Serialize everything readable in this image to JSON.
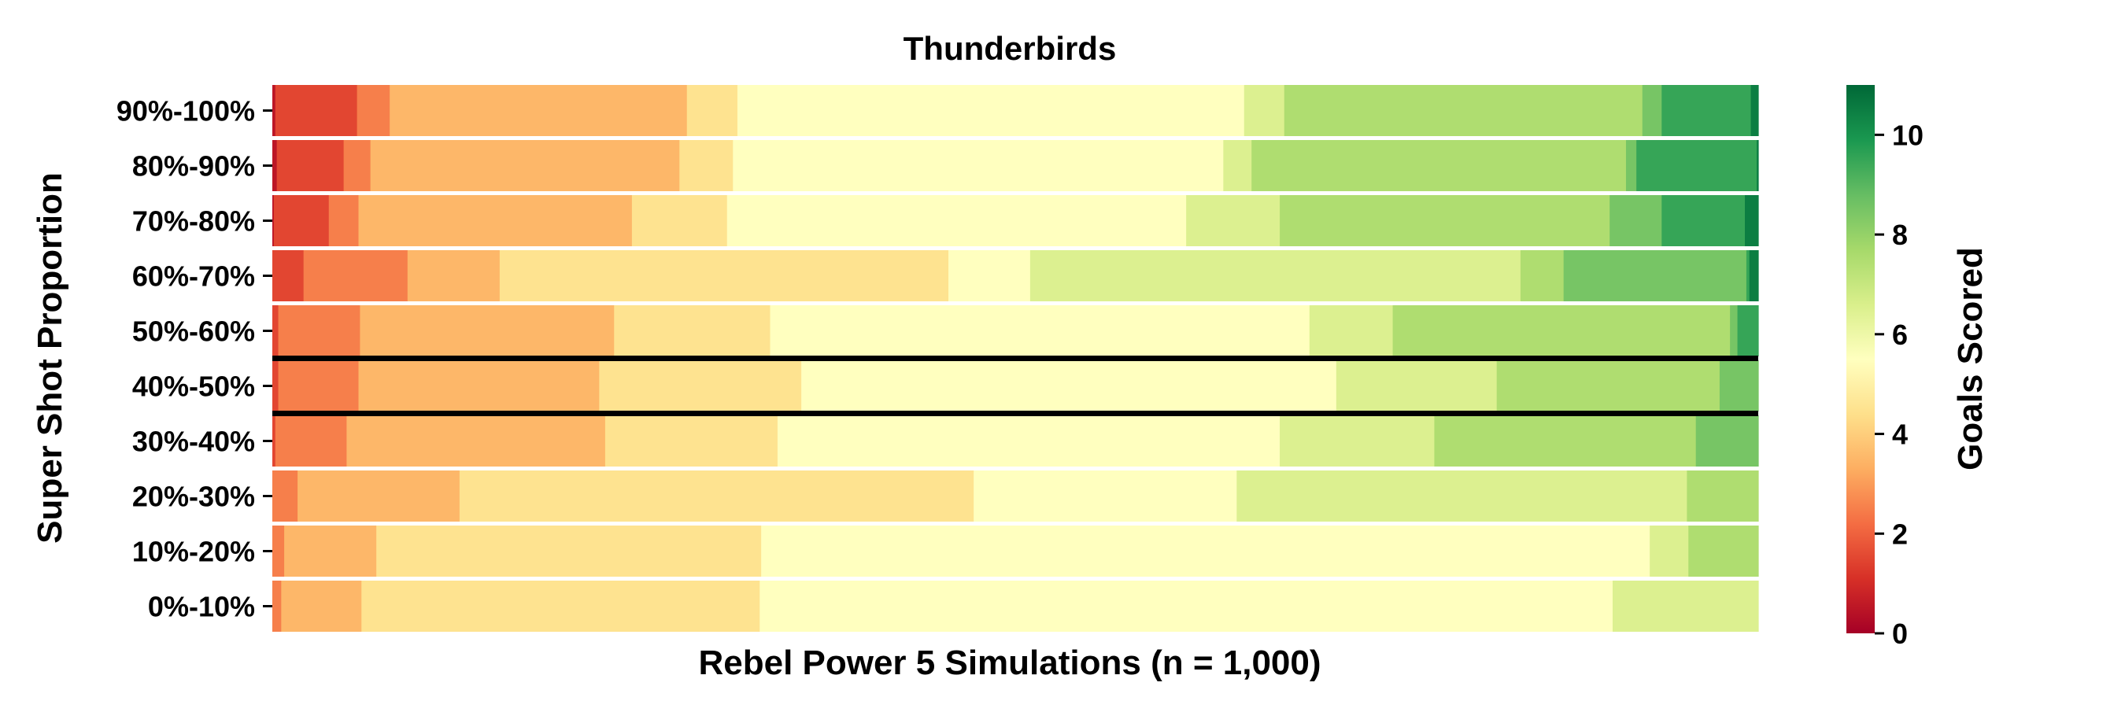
{
  "chart_data": {
    "type": "heatmap",
    "title": "Thunderbirds",
    "xlabel": "Rebel Power 5 Simulations (n = 1,000)",
    "ylabel": "Super Shot Proportion",
    "colorbar_label": "Goals Scored",
    "colorbar_ticks": [
      "0",
      "2",
      "4",
      "6",
      "8",
      "10"
    ],
    "colorbar_range": [
      0,
      11
    ],
    "colormap": "RdYlGn",
    "colormap_stops": [
      "#a50026",
      "#d73027",
      "#f46d43",
      "#fdae61",
      "#fee08b",
      "#ffffbf",
      "#d9ef8b",
      "#a6d96a",
      "#66bd63",
      "#1a9850",
      "#006837"
    ],
    "n_simulations": 1000,
    "highlighted_row": "40%-50%",
    "rows": [
      {
        "label": "90%-100%",
        "counts": [
          2,
          55,
          22,
          200,
          34,
          341,
          27,
          241,
          13,
          60,
          5
        ]
      },
      {
        "label": "80%-90%",
        "counts": [
          3,
          45,
          18,
          208,
          36,
          330,
          19,
          252,
          7,
          81,
          1
        ]
      },
      {
        "label": "70%-80%",
        "counts": [
          1,
          37,
          20,
          184,
          64,
          309,
          63,
          222,
          35,
          56,
          9
        ]
      },
      {
        "label": "60%-70%",
        "counts": [
          0,
          21,
          70,
          62,
          302,
          55,
          330,
          29,
          123,
          2,
          6
        ]
      },
      {
        "label": "50%-60%",
        "counts": [
          0,
          4,
          55,
          171,
          105,
          363,
          56,
          227,
          5,
          14,
          0
        ]
      },
      {
        "label": "40%-50%",
        "counts": [
          0,
          4,
          54,
          162,
          136,
          360,
          108,
          150,
          26,
          0,
          0
        ]
      },
      {
        "label": "30%-40%",
        "counts": [
          0,
          2,
          48,
          174,
          116,
          338,
          104,
          176,
          42,
          0,
          0
        ]
      },
      {
        "label": "20%-30%",
        "counts": [
          0,
          0,
          17,
          109,
          346,
          177,
          303,
          48,
          0,
          0,
          0
        ]
      },
      {
        "label": "10%-20%",
        "counts": [
          0,
          0,
          8,
          62,
          259,
          598,
          26,
          47,
          0,
          0,
          0
        ]
      },
      {
        "label": "0%-10%",
        "counts": [
          0,
          0,
          6,
          54,
          268,
          574,
          98,
          0,
          0,
          0,
          0
        ]
      }
    ]
  }
}
